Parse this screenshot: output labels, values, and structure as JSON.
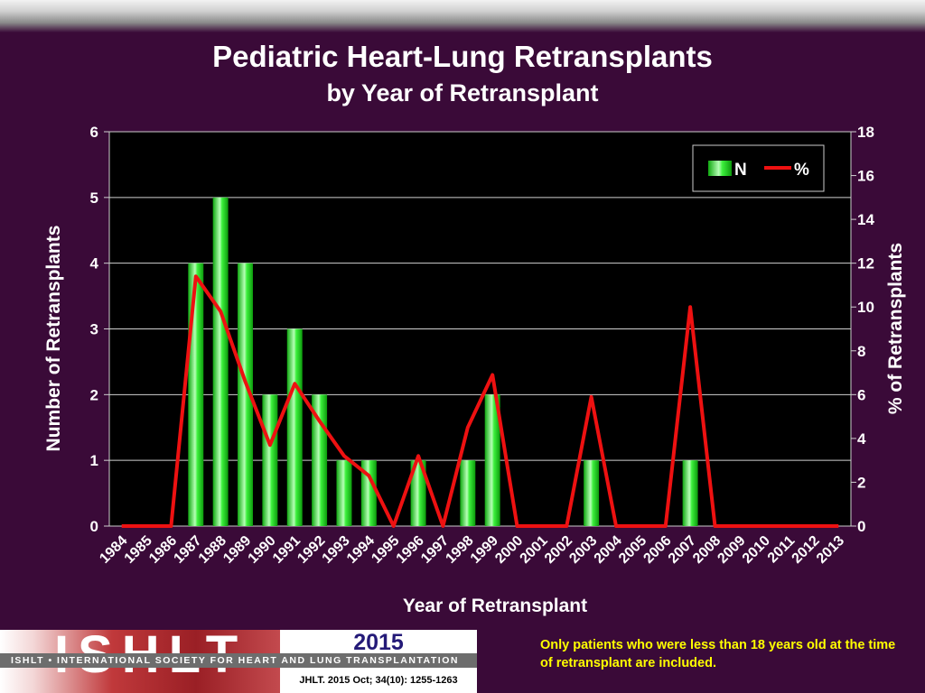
{
  "chart_data": {
    "type": "bar+line",
    "title": "Pediatric Heart-Lung Retransplants",
    "subtitle": "by Year of Retransplant",
    "xlabel": "Year of Retransplant",
    "ylabel": "Number of Retransplants",
    "y2label": "% of Retransplants",
    "ylim": [
      0,
      6
    ],
    "y2lim": [
      0,
      18
    ],
    "yticks": [
      0,
      1,
      2,
      3,
      4,
      5,
      6
    ],
    "y2ticks": [
      0,
      2,
      4,
      6,
      8,
      10,
      12,
      14,
      16,
      18
    ],
    "grid": true,
    "legend_position": "top-right",
    "categories": [
      "1984",
      "1985",
      "1986",
      "1987",
      "1988",
      "1989",
      "1990",
      "1991",
      "1992",
      "1993",
      "1994",
      "1995",
      "1996",
      "1997",
      "1998",
      "1999",
      "2000",
      "2001",
      "2002",
      "2003",
      "2004",
      "2005",
      "2006",
      "2007",
      "2008",
      "2009",
      "2010",
      "2011",
      "2012",
      "2013"
    ],
    "series": [
      {
        "name": "N",
        "type": "bar",
        "axis": "left",
        "color": "#19d919",
        "values": [
          0,
          0,
          0,
          4,
          5,
          4,
          2,
          3,
          2,
          1,
          1,
          0,
          1,
          0,
          1,
          2,
          0,
          0,
          0,
          1,
          0,
          0,
          0,
          1,
          0,
          0,
          0,
          0,
          0,
          0
        ]
      },
      {
        "name": "%",
        "type": "line",
        "axis": "right",
        "color": "#ee1111",
        "values": [
          0,
          0,
          0,
          11.4,
          9.8,
          6.6,
          3.7,
          6.5,
          4.8,
          3.2,
          2.3,
          0,
          3.2,
          0,
          4.5,
          6.9,
          0,
          0,
          0,
          5.9,
          0,
          0,
          0,
          10,
          0,
          0,
          0,
          0,
          0,
          0
        ]
      }
    ]
  },
  "footer": {
    "logo_text": "ISHLT",
    "org_name": "ISHLT • INTERNATIONAL SOCIETY FOR HEART AND LUNG TRANSPLANTATION",
    "year": "2015",
    "citation": "JHLT. 2015 Oct; 34(10): 1255-1263",
    "note": "Only patients who were less than 18 years old at the time of retransplant are included."
  }
}
